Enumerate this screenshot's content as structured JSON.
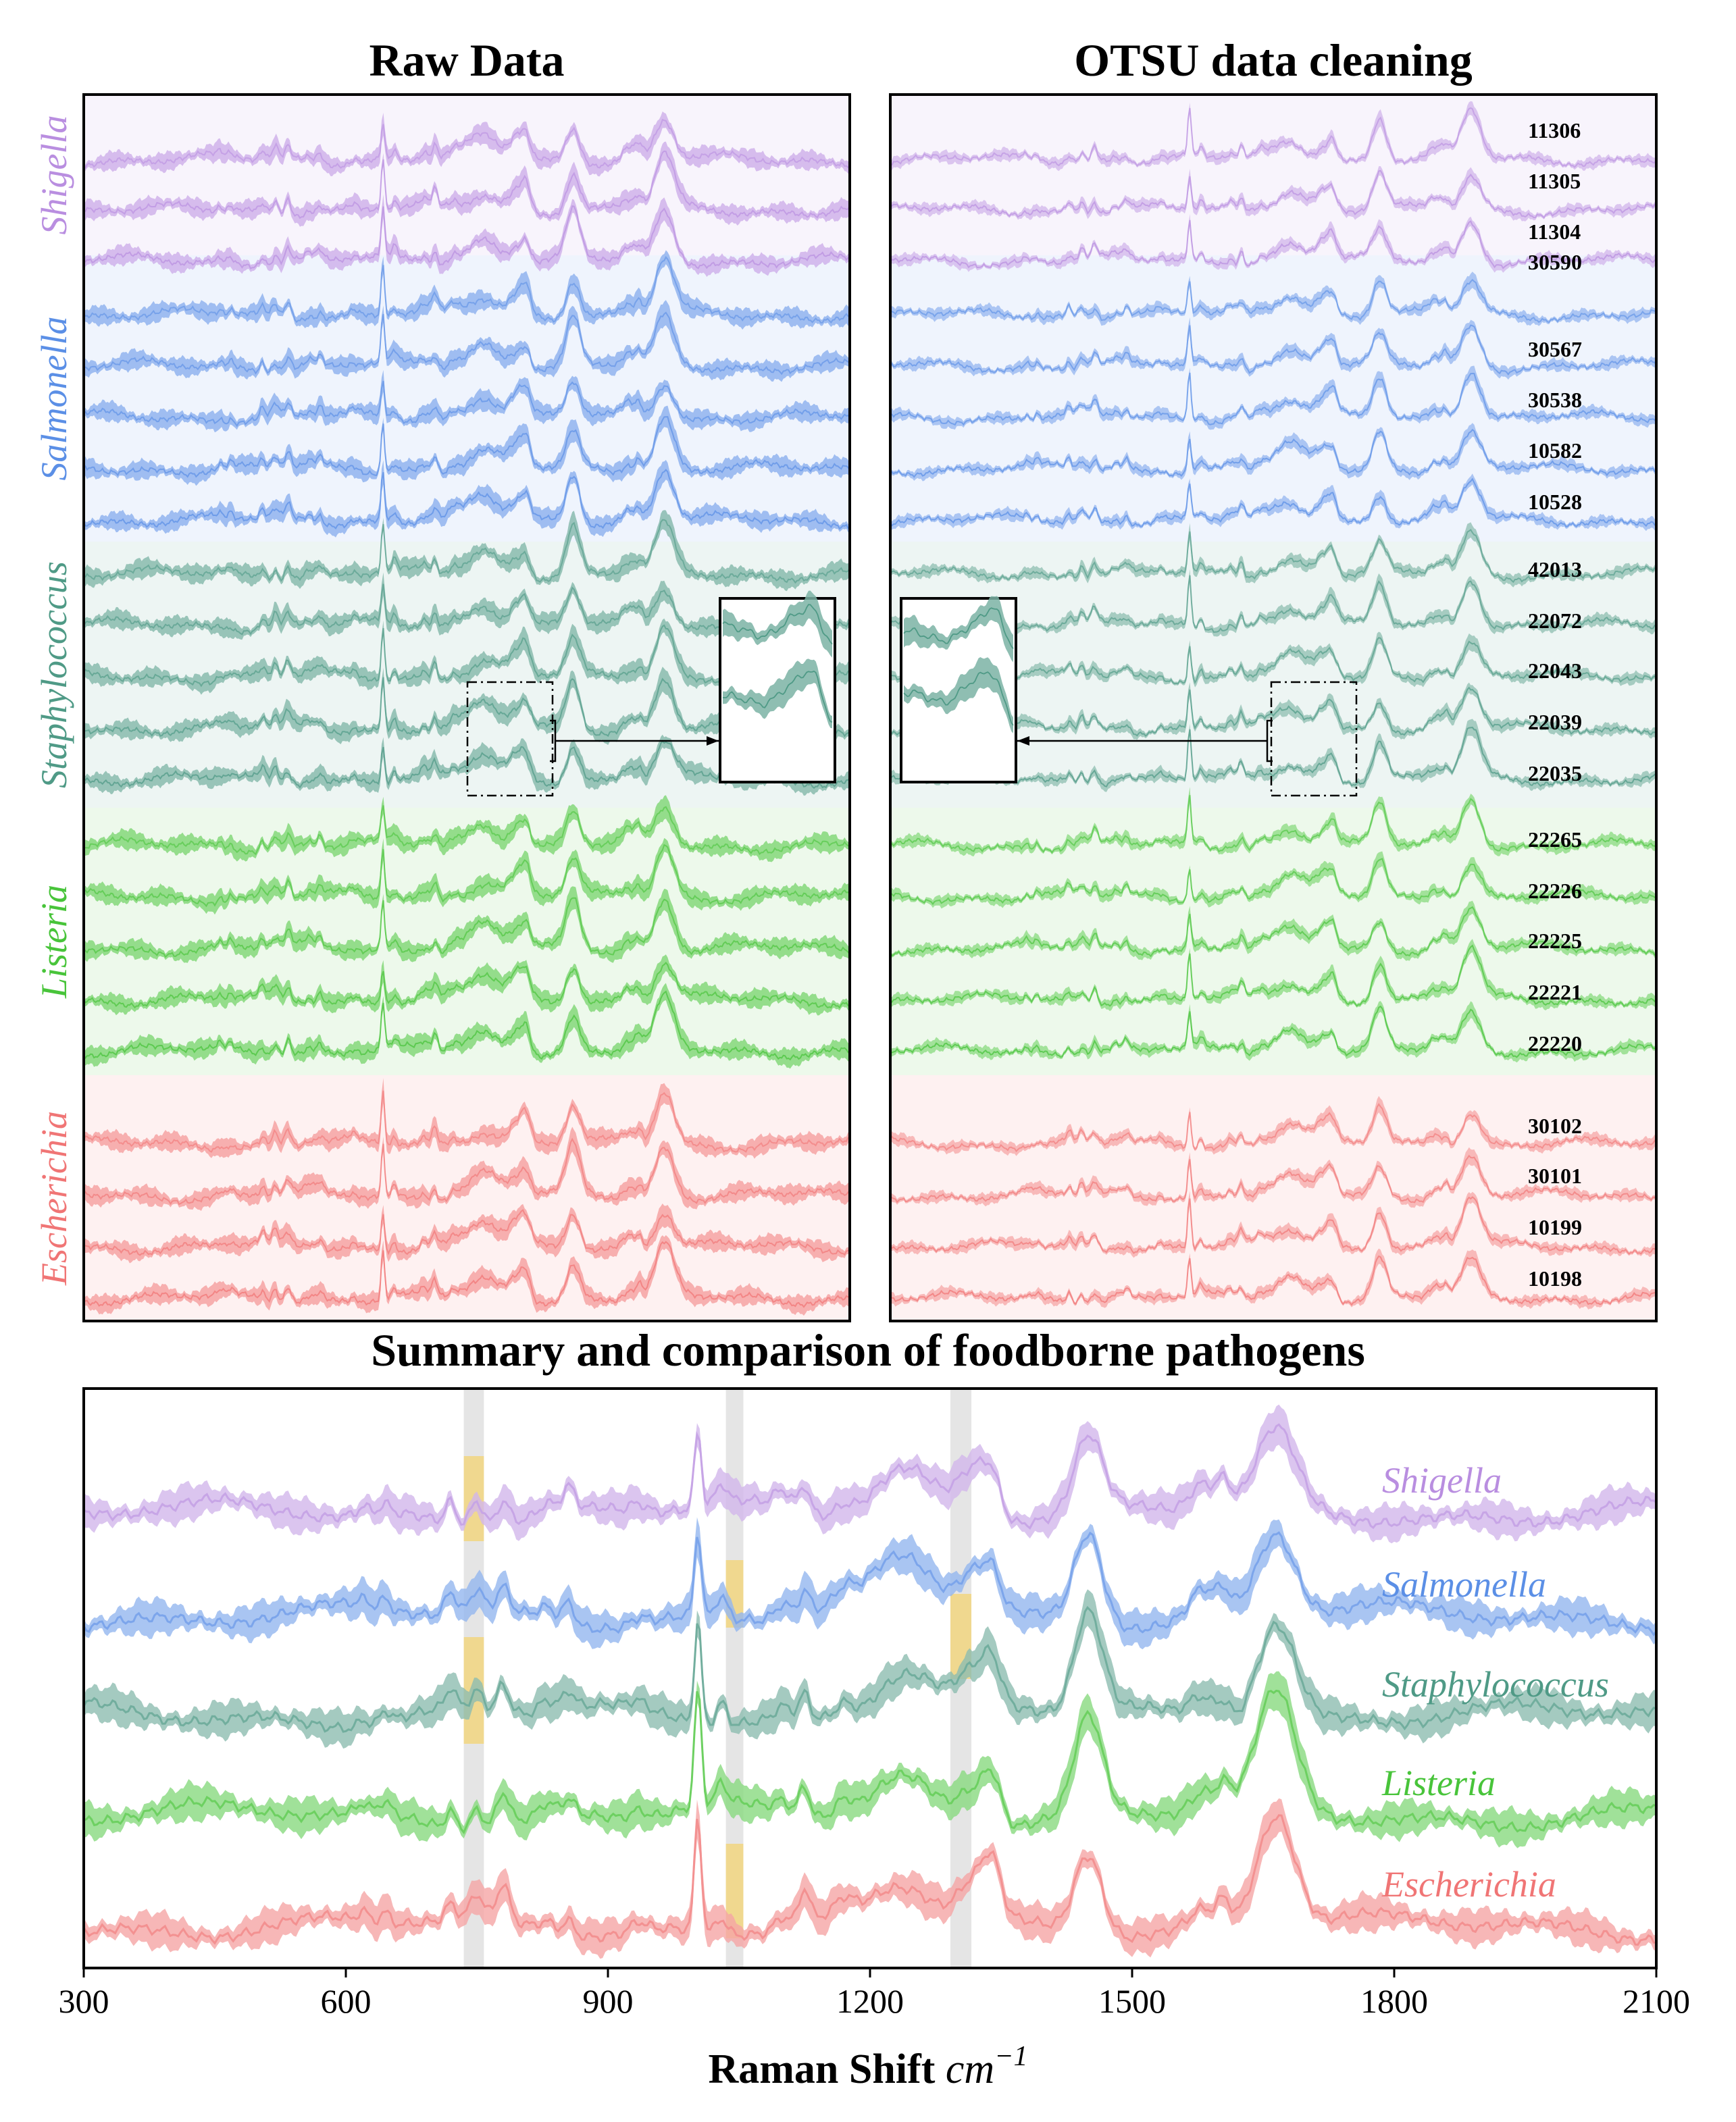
{
  "chart_data": [
    {
      "type": "line",
      "title": "Raw Data",
      "panel": "raw",
      "xlim": [
        300,
        2100
      ],
      "show_strain_labels": false,
      "inset": "right",
      "genera": [
        {
          "name": "Shigella",
          "color": "#b98ee0",
          "strains": [
            "11306",
            "11305",
            "11304"
          ]
        },
        {
          "name": "Salmonella",
          "color": "#5b8fe6",
          "strains": [
            "30590",
            "30567",
            "30538",
            "10582",
            "10528"
          ]
        },
        {
          "name": "Staphylococcus",
          "color": "#4f9a86",
          "strains": [
            "42013",
            "22072",
            "22043",
            "22039",
            "22035"
          ]
        },
        {
          "name": "Listeria",
          "color": "#48c43a",
          "strains": [
            "22265",
            "22226",
            "22225",
            "22221",
            "22220"
          ]
        },
        {
          "name": "Escherichia",
          "color": "#f07575",
          "strains": [
            "30102",
            "30101",
            "10199",
            "10198"
          ]
        }
      ]
    },
    {
      "type": "line",
      "title": "OTSU data cleaning",
      "panel": "clean",
      "xlim": [
        300,
        2100
      ],
      "show_strain_labels": true,
      "inset": "left",
      "genera": [
        {
          "name": "Shigella",
          "color": "#b98ee0",
          "strains": [
            "11306",
            "11305",
            "11304"
          ]
        },
        {
          "name": "Salmonella",
          "color": "#5b8fe6",
          "strains": [
            "30590",
            "30567",
            "30538",
            "10582",
            "10528"
          ]
        },
        {
          "name": "Staphylococcus",
          "color": "#4f9a86",
          "strains": [
            "42013",
            "22072",
            "22043",
            "22039",
            "22035"
          ]
        },
        {
          "name": "Listeria",
          "color": "#48c43a",
          "strains": [
            "22265",
            "22226",
            "22225",
            "22221",
            "22220"
          ]
        },
        {
          "name": "Escherichia",
          "color": "#f07575",
          "strains": [
            "30102",
            "30101",
            "10199",
            "10198"
          ]
        }
      ]
    },
    {
      "type": "line",
      "title": "Summary and comparison of foodborne pathogens",
      "panel": "summary",
      "xlabel": "Raman Shift cm⁻¹",
      "xlim": [
        300,
        2100
      ],
      "xticks": [
        300,
        600,
        900,
        1200,
        1500,
        1800,
        2100
      ],
      "series": [
        {
          "name": "Shigella",
          "color": "#b98ee0"
        },
        {
          "name": "Salmonella",
          "color": "#5b8fe6"
        },
        {
          "name": "Staphylococcus",
          "color": "#4f9a86"
        },
        {
          "name": "Listeria",
          "color": "#48c43a"
        },
        {
          "name": "Escherichia",
          "color": "#f07575"
        }
      ],
      "grey_bands": [
        [
          735,
          758
        ],
        [
          1035,
          1055
        ],
        [
          1292,
          1316
        ]
      ],
      "yellow_highlights": [
        {
          "series": "Shigella",
          "range": [
            735,
            758
          ]
        },
        {
          "series": "Staphylococcus",
          "range": [
            735,
            758
          ]
        },
        {
          "series": "Salmonella",
          "range": [
            1035,
            1055
          ]
        },
        {
          "series": "Escherichia",
          "range": [
            1035,
            1055
          ]
        },
        {
          "series": "Staphylococcus",
          "range": [
            1292,
            1316
          ]
        }
      ],
      "peaks_cm": [
        620,
        645,
        720,
        750,
        780,
        830,
        855,
        935,
        1003,
        1030,
        1100,
        1125,
        1170,
        1240,
        1320,
        1340,
        1450,
        1580,
        1605,
        1665
      ]
    }
  ]
}
